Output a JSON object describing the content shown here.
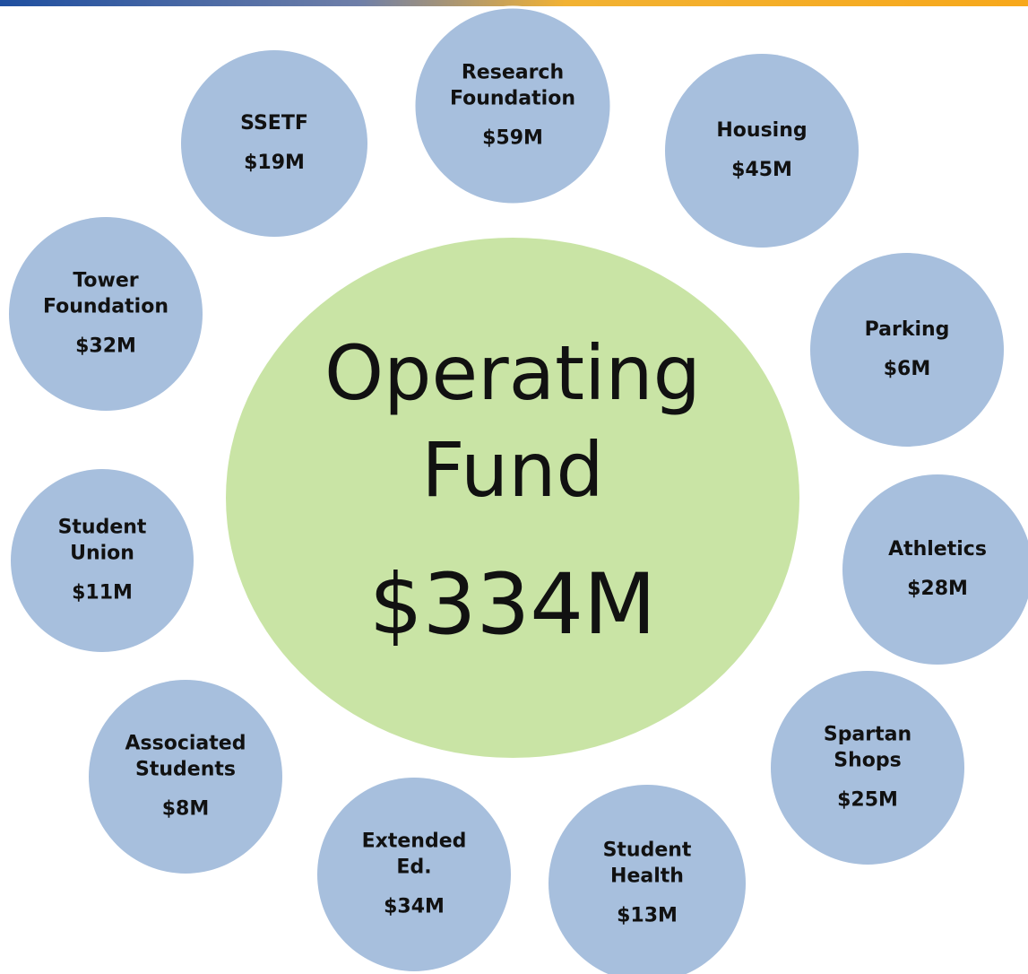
{
  "center": {
    "lines": [
      "Operating",
      "Fund"
    ],
    "amount": "$334M"
  },
  "nodes": [
    {
      "lines": [
        "Research",
        "Foundation"
      ],
      "amount": "$59M"
    },
    {
      "lines": [
        "SSETF"
      ],
      "amount": "$19M"
    },
    {
      "lines": [
        "Housing"
      ],
      "amount": "$45M"
    },
    {
      "lines": [
        "Tower",
        "Foundation"
      ],
      "amount": "$32M"
    },
    {
      "lines": [
        "Parking"
      ],
      "amount": "$6M"
    },
    {
      "lines": [
        "Student",
        "Union"
      ],
      "amount": "$11M"
    },
    {
      "lines": [
        "Athletics"
      ],
      "amount": "$28M"
    },
    {
      "lines": [
        "Associated",
        "Students"
      ],
      "amount": "$8M"
    },
    {
      "lines": [
        "Spartan",
        "Shops"
      ],
      "amount": "$25M"
    },
    {
      "lines": [
        "Extended",
        "Ed."
      ],
      "amount": "$34M"
    },
    {
      "lines": [
        "Student",
        "Health"
      ],
      "amount": "$13M"
    }
  ]
}
